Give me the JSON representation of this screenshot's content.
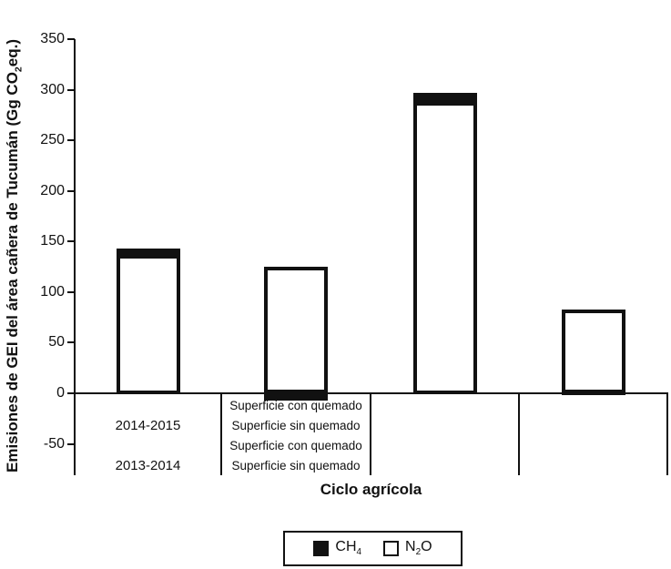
{
  "figure": {
    "y_axis_title": {
      "pre": "Emisiones de GEI del área cañera de Tucumán (Gg CO",
      "sub": "2",
      "post": "eq.)"
    },
    "x_axis_title": "Ciclo agrícola",
    "ink_color": "#111111",
    "background_color": "#ffffff"
  },
  "legend": {
    "items": [
      {
        "id": "CH4",
        "pre": "CH",
        "sub": "4",
        "post": "",
        "fill": "#111111"
      },
      {
        "id": "N2O",
        "pre": "N",
        "sub": "2",
        "post": "O",
        "fill": "#ffffff"
      }
    ]
  },
  "chart_data": {
    "type": "bar",
    "stacked": true,
    "title": "",
    "xlabel": "Ciclo agrícola",
    "ylabel": "Emisiones de GEI del área cañera de Tucumán (Gg CO2eq.)",
    "ylim": [
      -80,
      350
    ],
    "yticks": [
      350,
      300,
      250,
      200,
      150,
      100,
      50,
      0,
      -50
    ],
    "grid": false,
    "legend_position": "bottom",
    "categories": [
      "2014-2015 Superficie con quemado",
      "2014-2015 Superficie sin quemado",
      "2013-2014 Superficie con quemado",
      "2013-2014 Superficie sin quemado"
    ],
    "category_axis_labels": {
      "years": [
        "2014-2015",
        "2013-2014"
      ],
      "surfaces": [
        "Superficie con quemado",
        "Superficie sin quemado",
        "Superficie con quemado",
        "Superficie sin quemado"
      ]
    },
    "series": [
      {
        "name": "CH4",
        "fill": "#111111",
        "values": [
          6,
          -7,
          9,
          -2
        ]
      },
      {
        "name": "N2O",
        "fill": "#ffffff",
        "values": [
          137,
          125,
          288,
          83
        ]
      }
    ]
  }
}
